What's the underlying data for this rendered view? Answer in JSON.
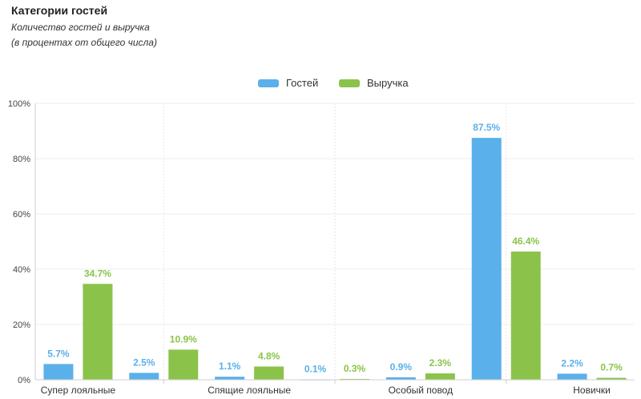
{
  "header": {
    "title": "Категории гостей",
    "subtitle_line1": "Количество гостей и выручка",
    "subtitle_line2": "(в процентах от общего числа)"
  },
  "legend": {
    "guests_label": "Гостей",
    "revenue_label": "Выручка"
  },
  "colors": {
    "guests": "#5AB0EA",
    "revenue": "#8BC34A"
  },
  "chart_data": {
    "type": "bar",
    "title": "Категории гостей",
    "subtitle": "Количество гостей и выручка (в процентах от общего числа)",
    "ylim": [
      0,
      100
    ],
    "y_ticks": [
      "0%",
      "20%",
      "40%",
      "60%",
      "80%",
      "100%"
    ],
    "categories": [
      "Супер лояльные",
      "",
      "Спящие лояльные",
      "",
      "Особый повод",
      "",
      "Новички"
    ],
    "series": [
      {
        "name": "Гостей",
        "values": [
          5.7,
          2.5,
          1.1,
          0.1,
          0.9,
          87.5,
          2.2
        ],
        "labels": [
          "5.7%",
          "2.5%",
          "1.1%",
          "0.1%",
          "0.9%",
          "87.5%",
          "2.2%"
        ]
      },
      {
        "name": "Выручка",
        "values": [
          34.7,
          10.9,
          4.8,
          0.3,
          2.3,
          46.4,
          0.7
        ],
        "labels": [
          "34.7%",
          "10.9%",
          "4.8%",
          "0.3%",
          "2.3%",
          "46.4%",
          "0.7%"
        ]
      }
    ],
    "grid": true,
    "legend_position": "top-center"
  }
}
